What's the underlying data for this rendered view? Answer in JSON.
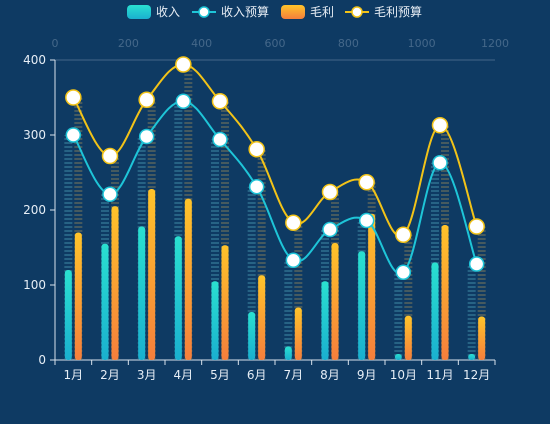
{
  "chart_data": {
    "type": "bar",
    "title": "",
    "categories": [
      "1月",
      "2月",
      "3月",
      "4月",
      "5月",
      "6月",
      "7月",
      "8月",
      "9月",
      "10月",
      "11月",
      "12月"
    ],
    "ylim": [
      0,
      400
    ],
    "yticks": [
      0,
      100,
      200,
      300,
      400
    ],
    "top_axis": {
      "ticks": [
        "0",
        "200",
        "400",
        "600",
        "800",
        "1000",
        "1200"
      ]
    },
    "grid": false,
    "legend": {
      "placement": "top-center"
    },
    "series": [
      {
        "name": "收入",
        "type": "bar",
        "color": "#2ad8d0",
        "values": [
          120,
          155,
          178,
          165,
          105,
          64,
          18,
          105,
          145,
          8,
          130,
          8
        ]
      },
      {
        "name": "收入预算",
        "type": "line",
        "color": "#1ec5d8",
        "values": [
          300,
          221,
          298,
          345,
          294,
          231,
          133,
          174,
          186,
          117,
          263,
          128
        ]
      },
      {
        "name": "毛利",
        "type": "bar",
        "color": "#ffb72c",
        "values": [
          170,
          205,
          228,
          215,
          153,
          113,
          70,
          156,
          195,
          59,
          180,
          58
        ]
      },
      {
        "name": "毛利预算",
        "type": "line",
        "color": "#f2c318",
        "values": [
          350,
          272,
          347,
          394,
          345,
          281,
          183,
          224,
          237,
          167,
          313,
          178
        ]
      }
    ]
  }
}
